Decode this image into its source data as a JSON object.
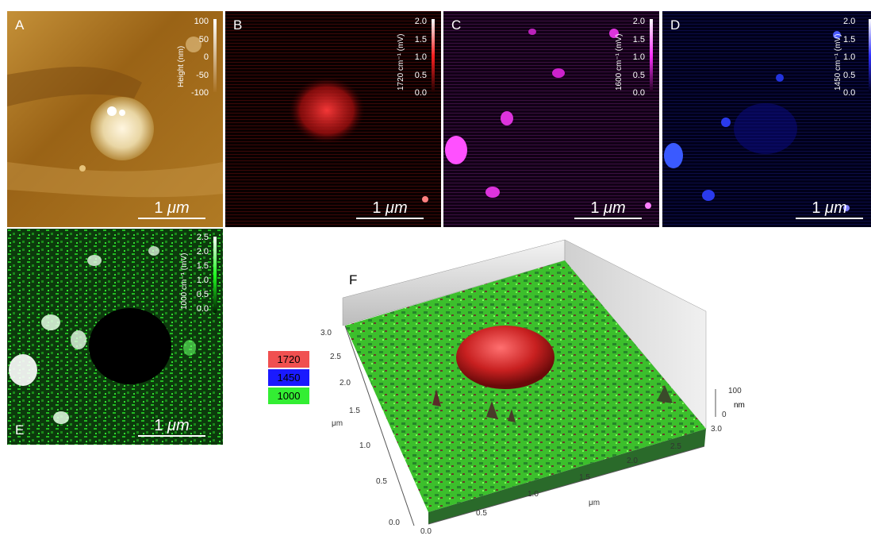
{
  "panels": {
    "a": {
      "label": "A",
      "scale": "1",
      "unit": "μm",
      "colorbar_title": "Height (nm)",
      "ticks": [
        "100",
        "50",
        "0",
        "-50",
        "-100"
      ]
    },
    "b": {
      "label": "B",
      "scale": "1",
      "unit": "μm",
      "colorbar_title": "1720 cm⁻¹ (mV)",
      "ticks": [
        "2.0",
        "1.5",
        "1.0",
        "0.5",
        "0.0"
      ]
    },
    "c": {
      "label": "C",
      "scale": "1",
      "unit": "μm",
      "colorbar_title": "1600 cm⁻¹ (mV)",
      "ticks": [
        "2.0",
        "1.5",
        "1.0",
        "0.5",
        "0.0"
      ]
    },
    "d": {
      "label": "D",
      "scale": "1",
      "unit": "μm",
      "colorbar_title": "1450 cm⁻¹ (mV)",
      "ticks": [
        "2.0",
        "1.5",
        "1.0",
        "0.5",
        "0.0"
      ]
    },
    "e": {
      "label": "E",
      "scale": "1",
      "unit": "μm",
      "colorbar_title": "1000 cm⁻¹ (mV)",
      "ticks": [
        "2.5",
        "2.0",
        "1.5",
        "1.0",
        "0.5",
        "0.0"
      ]
    },
    "f": {
      "label": "F"
    }
  },
  "legend": [
    {
      "label": "1720",
      "color": "#f05050"
    },
    {
      "label": "1450",
      "color": "#1a1aff"
    },
    {
      "label": "1000",
      "color": "#33ee33"
    }
  ],
  "surface": {
    "y_axis_ticks": [
      "3.0",
      "2.5",
      "2.0",
      "1.5",
      "1.0",
      "0.5",
      "0.0"
    ],
    "y_axis_label": "μm",
    "x_axis_ticks": [
      "0.0",
      "0.5",
      "1.0",
      "1.5",
      "2.0",
      "2.5",
      "3.0"
    ],
    "x_axis_label": "μm",
    "z_axis_ticks": [
      "100",
      "0"
    ],
    "z_axis_label": "nm"
  }
}
